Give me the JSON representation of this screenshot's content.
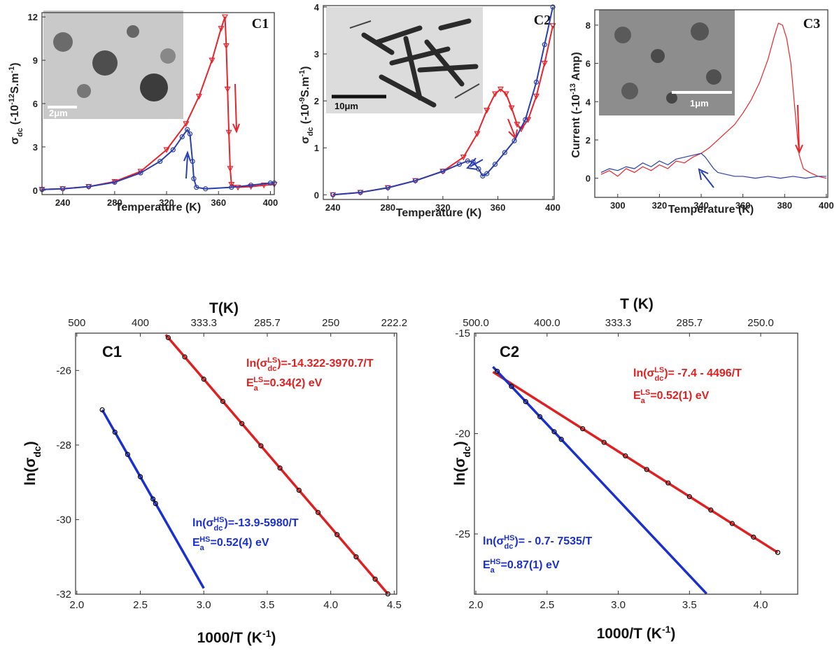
{
  "chart_data": [
    {
      "type": "line",
      "label": "C1",
      "xlabel": "Temperature (K)",
      "ylabel": [
        "σ",
        "dc",
        " (-10",
        "-12",
        "S.m",
        "-1",
        ")"
      ],
      "inset_label": "2μm",
      "xlim": [
        224,
        403
      ],
      "ylim": [
        -0.3,
        12.3
      ],
      "xticks": [
        240,
        280,
        320,
        360,
        400
      ],
      "yticks": [
        0,
        3,
        6,
        9,
        12
      ],
      "series": [
        {
          "color": "#e8242a",
          "marker": "triangle",
          "x": [
            224,
            240,
            260,
            280,
            300,
            320,
            335,
            345,
            355,
            362,
            365,
            366,
            367,
            368,
            369,
            370,
            375,
            385,
            395,
            403
          ],
          "values": [
            0.05,
            0.1,
            0.25,
            0.6,
            1.3,
            2.8,
            4.6,
            6.5,
            9.0,
            11.2,
            12.0,
            10,
            7,
            4,
            1.5,
            0.4,
            0.2,
            0.25,
            0.35,
            0.4
          ]
        },
        {
          "color": "#2a3fae",
          "marker": "circle",
          "x": [
            224,
            240,
            260,
            280,
            300,
            315,
            325,
            332,
            336,
            338,
            340,
            341,
            343,
            350,
            370,
            385,
            400,
            403
          ],
          "values": [
            0.05,
            0.1,
            0.25,
            0.55,
            1.2,
            2.0,
            2.8,
            3.7,
            4.2,
            3.9,
            2.0,
            0.8,
            0.2,
            0.1,
            0.2,
            0.35,
            0.5,
            0.5
          ]
        }
      ]
    },
    {
      "type": "line",
      "label": "C2",
      "xlabel": "Temperature (K)",
      "ylabel": [
        "σ",
        "dc",
        " (-10",
        "-9",
        "S.m",
        "-1",
        ")"
      ],
      "inset_label": "10μm",
      "xlim": [
        233,
        401
      ],
      "ylim": [
        -0.1,
        4.03
      ],
      "xticks": [
        240,
        280,
        320,
        360,
        400
      ],
      "yticks": [
        0,
        1,
        2,
        3,
        4
      ],
      "series": [
        {
          "color": "#e8242a",
          "marker": "triangle",
          "x": [
            240,
            260,
            280,
            300,
            320,
            335,
            345,
            352,
            358,
            362,
            366,
            370,
            374,
            377,
            382,
            388,
            394,
            400
          ],
          "values": [
            0,
            0.05,
            0.15,
            0.3,
            0.5,
            0.8,
            1.3,
            1.8,
            2.15,
            2.25,
            2.15,
            1.85,
            1.5,
            1.4,
            1.6,
            2.1,
            2.8,
            3.6
          ]
        },
        {
          "color": "#2a3fae",
          "marker": "circle",
          "x": [
            240,
            260,
            280,
            300,
            320,
            332,
            338,
            342,
            346,
            349,
            352,
            358,
            365,
            372,
            380,
            388,
            394,
            400
          ],
          "values": [
            0,
            0.05,
            0.15,
            0.3,
            0.5,
            0.65,
            0.72,
            0.7,
            0.55,
            0.4,
            0.45,
            0.65,
            0.9,
            1.15,
            1.6,
            2.4,
            3.2,
            4.0
          ]
        }
      ]
    },
    {
      "type": "line",
      "label": "C3",
      "xlabel": "Temperature (K)",
      "ylabel": [
        "Current (-10",
        "-13",
        " Amp)"
      ],
      "inset_label": "1μm",
      "xlim": [
        289,
        400.7
      ],
      "ylim": [
        -1,
        8.8
      ],
      "xticks": [
        300,
        320,
        340,
        360,
        380,
        400
      ],
      "yticks": [
        0,
        2,
        4,
        6,
        8
      ],
      "series": [
        {
          "color": "#e8242a",
          "x": [
            292,
            296,
            300,
            304,
            308,
            312,
            316,
            320,
            324,
            328,
            332,
            336,
            340,
            344,
            348,
            352,
            356,
            360,
            364,
            368,
            372,
            375,
            377,
            379,
            381,
            383,
            385,
            387,
            389,
            392,
            396,
            400
          ],
          "values": [
            0.2,
            0.4,
            0.1,
            0.5,
            0.3,
            0.6,
            0.4,
            0.7,
            0.5,
            0.9,
            0.8,
            1.1,
            1.3,
            1.6,
            2.0,
            2.4,
            2.8,
            3.4,
            4.1,
            5.0,
            6.2,
            7.4,
            8.1,
            8.0,
            7.3,
            6.0,
            3.5,
            1.2,
            0.5,
            0.3,
            0.1,
            0.0
          ]
        },
        {
          "color": "#2a3fae",
          "x": [
            292,
            296,
            300,
            304,
            308,
            312,
            316,
            320,
            324,
            328,
            332,
            336,
            340,
            342,
            344,
            346,
            348,
            352,
            356,
            360,
            366,
            372,
            378,
            384,
            390,
            396,
            400
          ],
          "values": [
            0.3,
            0.5,
            0.4,
            0.6,
            0.5,
            0.8,
            0.6,
            0.9,
            0.7,
            1.0,
            1.1,
            1.2,
            1.3,
            1.1,
            0.8,
            0.5,
            0.3,
            0.2,
            0.1,
            0.1,
            0.0,
            0.1,
            0.0,
            0.1,
            0.0,
            0.1,
            0.1
          ]
        }
      ]
    },
    {
      "type": "scatter",
      "label": "C1",
      "xlabel": [
        "1000/T (K",
        "-1",
        ")"
      ],
      "ylabel": [
        "ln(σ",
        "dc",
        ")"
      ],
      "x2label": "T(K)",
      "xlim": [
        1.99,
        4.52
      ],
      "ylim": [
        -32,
        -25.0
      ],
      "xticks": [
        {
          "value": 2,
          "label": "2.0"
        },
        2.5,
        {
          "value": 3,
          "label": "3.0"
        },
        3.5,
        {
          "value": 4,
          "label": "4.0"
        },
        4.5
      ],
      "yticks": [
        -26,
        -28,
        -30,
        -32
      ],
      "x2ticks": [
        {
          "value": 2,
          "label": "500"
        },
        {
          "value": 2.5,
          "label": "400"
        },
        {
          "value": 3,
          "label": "333.3"
        },
        {
          "value": 3.5,
          "label": "285.7"
        },
        {
          "value": 4,
          "label": "250"
        },
        {
          "value": 4.5,
          "label": "222.2"
        }
      ],
      "series": [
        {
          "color": "#e02020",
          "mode": "lines",
          "x": [
            2.7,
            4.45
          ],
          "values": [
            -25.043,
            -31.992
          ]
        },
        {
          "color": "#1a2fd0",
          "mode": "lines",
          "x": [
            2.2,
            3.0
          ],
          "values": [
            -27.056,
            -31.84
          ]
        },
        {
          "color": "#000000",
          "mode": "markers",
          "x": [
            2.2,
            2.3,
            2.4,
            2.5,
            2.6,
            2.62,
            2.72,
            2.85,
            3.0,
            3.15,
            3.3,
            3.45,
            3.6,
            3.75,
            3.9,
            4.05,
            4.2,
            4.35,
            4.45
          ],
          "values": [
            -27.056,
            -27.654,
            -28.252,
            -28.85,
            -29.448,
            -29.568,
            -25.122,
            -25.638,
            -26.234,
            -26.83,
            -27.425,
            -28.021,
            -28.617,
            -29.212,
            -29.808,
            -30.403,
            -30.999,
            -31.595,
            -31.992
          ]
        }
      ],
      "annotations": [
        {
          "color": "#e02020",
          "lines": [
            [
              "ln(σ",
              "dc",
              "LS",
              ")=-14.322-3970.7/T"
            ],
            [
              "E",
              "a",
              "LS",
              "=0.34(2) eV"
            ]
          ]
        },
        {
          "color": "#1a2fd0",
          "lines": [
            [
              "ln(σ",
              "dc",
              "HS",
              ")=-13.9-5980/T"
            ],
            [
              "E",
              "a",
              "HS",
              "=0.52(4) eV"
            ]
          ]
        }
      ]
    },
    {
      "type": "scatter",
      "label": "C2",
      "xlabel": [
        "1000/T (K",
        "-1",
        ")"
      ],
      "ylabel": [
        "ln(σ",
        "dc",
        ")"
      ],
      "x2label": "T (K)",
      "xlim": [
        1.99,
        4.26
      ],
      "ylim": [
        -28,
        -15
      ],
      "xticks": [
        {
          "value": 2,
          "label": "2.0"
        },
        2.5,
        {
          "value": 3,
          "label": "3.0"
        },
        3.5,
        {
          "value": 4,
          "label": "4.0"
        }
      ],
      "yticks": [
        -15,
        -20,
        -25
      ],
      "x2ticks": [
        {
          "value": 2,
          "label": "500.0"
        },
        {
          "value": 2.5,
          "label": "400.0"
        },
        {
          "value": 3,
          "label": "333.3"
        },
        {
          "value": 3.5,
          "label": "285.7"
        },
        {
          "value": 4,
          "label": "250.0"
        }
      ],
      "series": [
        {
          "color": "#e02020",
          "mode": "lines",
          "x": [
            2.12,
            4.12
          ],
          "values": [
            -16.932,
            -25.924
          ]
        },
        {
          "color": "#1a2fd0",
          "mode": "lines",
          "x": [
            2.12,
            3.62
          ],
          "values": [
            -16.674,
            -27.977
          ]
        },
        {
          "color": "#000000",
          "mode": "markers",
          "x": [
            2.15,
            2.25,
            2.35,
            2.45,
            2.55,
            2.6,
            2.75,
            2.9,
            3.05,
            3.2,
            3.35,
            3.5,
            3.65,
            3.8,
            3.95,
            4.12
          ],
          "values": [
            -16.9,
            -17.65,
            -18.41,
            -19.16,
            -19.91,
            -20.29,
            -19.76,
            -20.44,
            -21.11,
            -21.79,
            -22.46,
            -23.14,
            -23.81,
            -24.48,
            -25.16,
            -25.92
          ]
        }
      ],
      "annotations": [
        {
          "color": "#e02020",
          "lines": [
            [
              "ln(σ",
              "dc",
              "LS",
              ")= -7.4 - 4496/T"
            ],
            [
              "E",
              "a",
              "LS",
              "=0.52(1) eV"
            ]
          ]
        },
        {
          "color": "#1a2fd0",
          "lines": [
            [
              "ln(σ",
              "dc",
              "HS",
              ")= - 0.7- 7535/T"
            ],
            [
              "E",
              "a",
              "HS",
              "=0.87(1) eV"
            ]
          ]
        }
      ]
    }
  ]
}
